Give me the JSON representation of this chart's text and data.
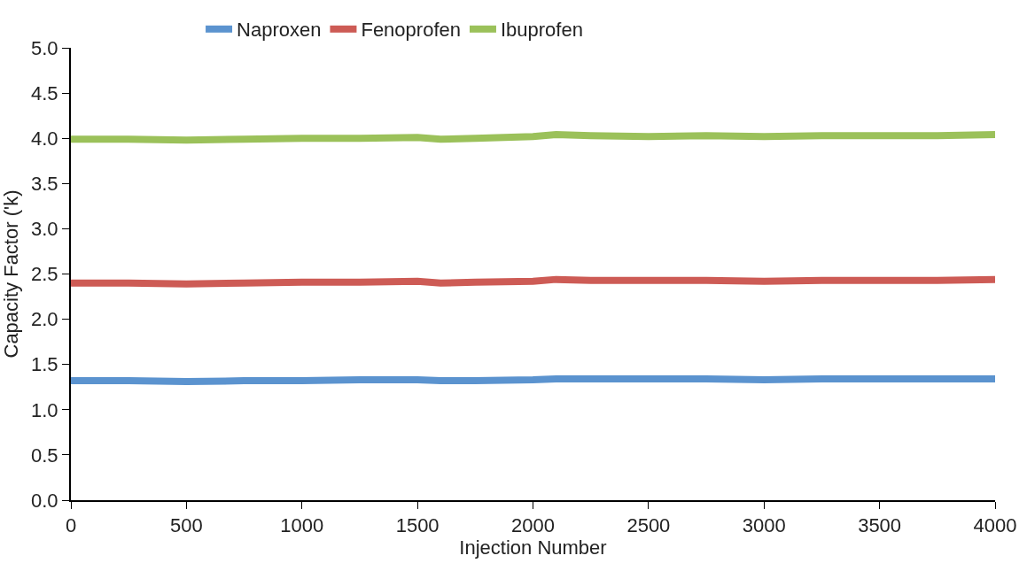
{
  "chart_data": {
    "type": "line",
    "xlabel": "Injection Number",
    "ylabel": "Capacity Factor ('k)",
    "x": [
      0,
      250,
      500,
      750,
      1000,
      1250,
      1500,
      1600,
      1750,
      2000,
      2100,
      2250,
      2500,
      2750,
      3000,
      3250,
      3500,
      3750,
      4000
    ],
    "series": [
      {
        "name": "Naproxen",
        "color": "#5b93cf",
        "values": [
          1.32,
          1.32,
          1.31,
          1.32,
          1.32,
          1.33,
          1.33,
          1.32,
          1.32,
          1.33,
          1.34,
          1.34,
          1.34,
          1.34,
          1.33,
          1.34,
          1.34,
          1.34,
          1.34
        ]
      },
      {
        "name": "Fenoprofen",
        "color": "#cd5b55",
        "values": [
          2.4,
          2.4,
          2.39,
          2.4,
          2.41,
          2.41,
          2.42,
          2.4,
          2.41,
          2.42,
          2.44,
          2.43,
          2.43,
          2.43,
          2.42,
          2.43,
          2.43,
          2.43,
          2.44
        ]
      },
      {
        "name": "Ibuprofen",
        "color": "#9bc15a",
        "values": [
          3.99,
          3.99,
          3.98,
          3.99,
          4.0,
          4.0,
          4.01,
          3.99,
          4.0,
          4.02,
          4.04,
          4.03,
          4.02,
          4.03,
          4.02,
          4.03,
          4.03,
          4.03,
          4.04
        ]
      }
    ],
    "xlim": [
      0,
      4000
    ],
    "xticks": [
      0,
      500,
      1000,
      1500,
      2000,
      2500,
      3000,
      3500,
      4000
    ],
    "ylim": [
      0,
      5
    ],
    "yticks": [
      {
        "value": 0,
        "label": "0.0"
      },
      0.5,
      {
        "value": 1,
        "label": "1.0"
      },
      1.5,
      {
        "value": 2,
        "label": "2.0"
      },
      2.5,
      {
        "value": 3,
        "label": "3.0"
      },
      3.5,
      {
        "value": 4,
        "label": "4.0"
      },
      4.5,
      {
        "value": 5,
        "label": "5.0"
      }
    ],
    "legend": "top",
    "marker": "none",
    "line_style": "solid"
  }
}
